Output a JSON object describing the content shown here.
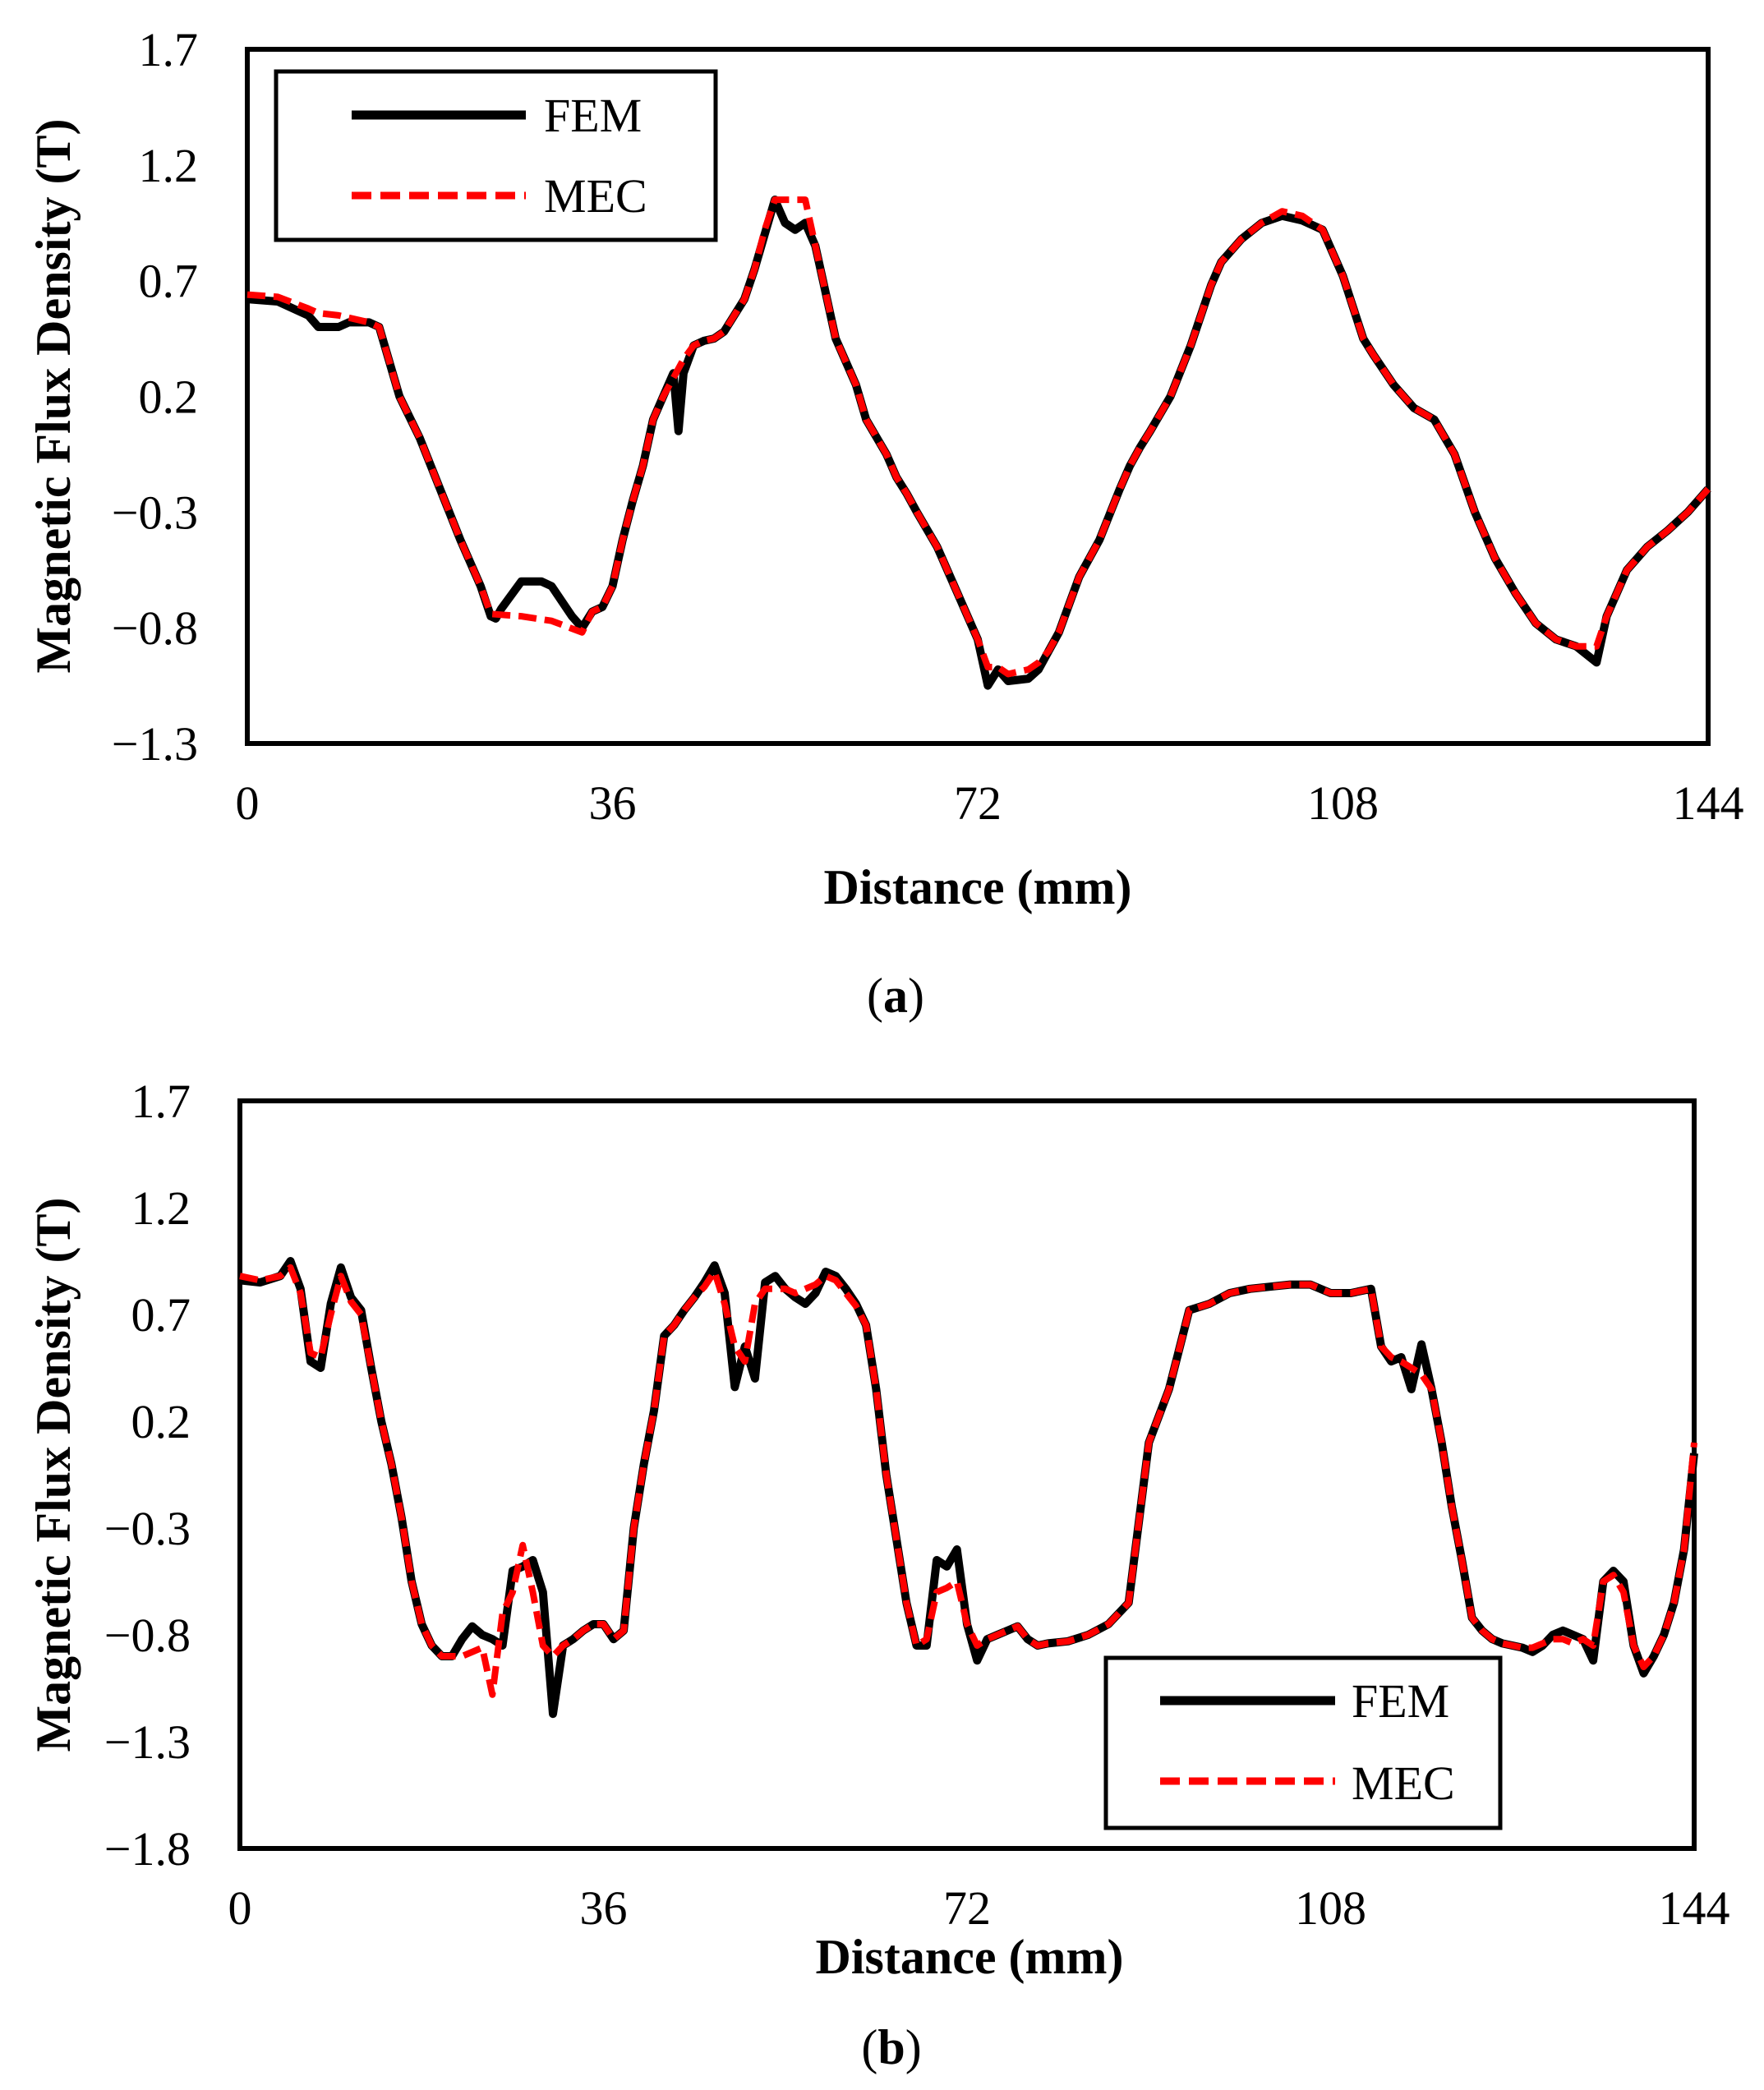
{
  "colors": {
    "fem": "#000000",
    "mec": "#ff0000",
    "frame": "#000000"
  },
  "chart_data": [
    {
      "type": "line",
      "panel_label": "a",
      "xlabel": "Distance (mm)",
      "ylabel": "Magnetic Flux Density (T)",
      "xlim": [
        0,
        144
      ],
      "ylim": [
        -1.3,
        1.7
      ],
      "xticks": [
        0,
        36,
        72,
        108,
        144
      ],
      "xtick_labels": [
        "0",
        "36",
        "72",
        "108",
        "144"
      ],
      "yticks": [
        -1.3,
        -0.8,
        -0.3,
        0.2,
        0.7,
        1.2,
        1.7
      ],
      "ytick_labels": [
        "−1.3",
        "−0.8",
        "−0.3",
        "0.2",
        "0.7",
        "1.2",
        "1.7"
      ],
      "legend": {
        "position": "top-left",
        "entries": [
          "FEM",
          "MEC"
        ]
      },
      "series": [
        {
          "name": "FEM",
          "x": [
            0,
            3,
            6,
            7,
            9,
            10,
            12,
            13,
            14,
            15,
            17,
            19,
            21,
            23,
            24,
            24.5,
            25,
            27,
            29,
            30,
            32,
            33,
            34,
            35,
            36,
            37,
            38,
            39,
            40,
            41,
            42,
            42.5,
            43,
            44,
            45,
            46,
            47,
            49,
            50,
            51,
            52,
            53,
            54,
            55,
            56,
            57,
            58,
            59,
            60,
            61,
            63,
            64,
            65,
            66,
            68,
            70,
            72,
            73,
            74,
            75,
            77,
            78,
            79,
            80,
            81,
            82,
            84,
            86,
            87,
            88,
            89,
            91,
            93,
            95,
            96,
            98,
            100,
            102,
            104,
            106,
            108,
            110,
            111,
            113,
            115,
            117,
            119,
            121,
            123,
            125,
            127,
            129,
            131,
            133,
            134,
            135,
            136,
            137,
            138,
            140,
            142,
            144
          ],
          "y": [
            0.62,
            0.61,
            0.55,
            0.5,
            0.5,
            0.52,
            0.52,
            0.5,
            0.35,
            0.2,
            0.02,
            -0.2,
            -0.42,
            -0.62,
            -0.75,
            -0.76,
            -0.72,
            -0.6,
            -0.6,
            -0.62,
            -0.75,
            -0.8,
            -0.73,
            -0.71,
            -0.62,
            -0.42,
            -0.25,
            -0.1,
            0.1,
            0.2,
            0.3,
            0.05,
            0.3,
            0.42,
            0.44,
            0.45,
            0.48,
            0.62,
            0.75,
            0.9,
            1.05,
            0.95,
            0.92,
            0.95,
            0.85,
            0.65,
            0.45,
            0.35,
            0.25,
            0.1,
            -0.05,
            -0.15,
            -0.22,
            -0.3,
            -0.45,
            -0.65,
            -0.85,
            -1.05,
            -0.98,
            -1.03,
            -1.02,
            -0.98,
            -0.9,
            -0.82,
            -0.7,
            -0.58,
            -0.42,
            -0.2,
            -0.1,
            -0.02,
            0.05,
            0.2,
            0.42,
            0.68,
            0.78,
            0.88,
            0.95,
            0.98,
            0.96,
            0.92,
            0.72,
            0.45,
            0.38,
            0.25,
            0.15,
            0.1,
            -0.05,
            -0.3,
            -0.5,
            -0.65,
            -0.78,
            -0.85,
            -0.88,
            -0.95,
            -0.75,
            -0.65,
            -0.55,
            -0.5,
            -0.45,
            -0.38,
            -0.3,
            -0.2
          ]
        },
        {
          "name": "MEC",
          "x": [
            0,
            3,
            6,
            7,
            9,
            10,
            12,
            13,
            14,
            15,
            17,
            19,
            21,
            23,
            24,
            27,
            30,
            33,
            34,
            35,
            36,
            37,
            38,
            39,
            40,
            41,
            42,
            43,
            44,
            45,
            46,
            47,
            49,
            50,
            51,
            52,
            54,
            55,
            56,
            57,
            58,
            59,
            60,
            61,
            63,
            64,
            65,
            66,
            68,
            70,
            72,
            73,
            74,
            75,
            77,
            78,
            79,
            80,
            81,
            82,
            84,
            86,
            87,
            88,
            89,
            91,
            93,
            95,
            96,
            98,
            100,
            102,
            104,
            106,
            108,
            110,
            111,
            113,
            115,
            117,
            119,
            121,
            123,
            125,
            127,
            129,
            131,
            133,
            134,
            135,
            136,
            137,
            138,
            140,
            142,
            144
          ],
          "y": [
            0.64,
            0.63,
            0.58,
            0.56,
            0.55,
            0.54,
            0.52,
            0.5,
            0.35,
            0.2,
            0.02,
            -0.2,
            -0.42,
            -0.62,
            -0.74,
            -0.75,
            -0.77,
            -0.82,
            -0.73,
            -0.71,
            -0.62,
            -0.42,
            -0.25,
            -0.1,
            0.1,
            0.2,
            0.28,
            0.36,
            0.42,
            0.44,
            0.45,
            0.48,
            0.62,
            0.75,
            0.92,
            1.05,
            1.05,
            1.05,
            0.85,
            0.65,
            0.45,
            0.35,
            0.25,
            0.1,
            -0.05,
            -0.15,
            -0.22,
            -0.3,
            -0.45,
            -0.65,
            -0.85,
            -0.97,
            -0.97,
            -1.0,
            -0.98,
            -0.95,
            -0.9,
            -0.82,
            -0.7,
            -0.58,
            -0.42,
            -0.2,
            -0.1,
            -0.02,
            0.05,
            0.2,
            0.42,
            0.68,
            0.78,
            0.88,
            0.95,
            1.0,
            0.98,
            0.92,
            0.72,
            0.45,
            0.38,
            0.25,
            0.15,
            0.1,
            -0.05,
            -0.3,
            -0.5,
            -0.65,
            -0.78,
            -0.85,
            -0.88,
            -0.88,
            -0.75,
            -0.65,
            -0.55,
            -0.5,
            -0.45,
            -0.38,
            -0.3,
            -0.2
          ]
        }
      ]
    },
    {
      "type": "line",
      "panel_label": "b",
      "xlabel": "Distance (mm)",
      "ylabel": "Magnetic Flux Density (T)",
      "xlim": [
        0,
        144
      ],
      "ylim": [
        -1.8,
        1.7
      ],
      "xticks": [
        0,
        36,
        72,
        108,
        144
      ],
      "xtick_labels": [
        "0",
        "36",
        "72",
        "108",
        "144"
      ],
      "yticks": [
        -1.8,
        -1.3,
        -0.8,
        -0.3,
        0.2,
        0.7,
        1.2,
        1.7
      ],
      "ytick_labels": [
        "−1.8",
        "−1.3",
        "−0.8",
        "−0.3",
        "0.2",
        "0.7",
        "1.2",
        "1.7"
      ],
      "legend": {
        "position": "bottom-right",
        "entries": [
          "FEM",
          "MEC"
        ]
      },
      "series": [
        {
          "name": "FEM",
          "x": [
            0,
            2,
            4,
            5,
            6,
            7,
            8,
            9,
            10,
            11,
            12,
            13,
            14,
            15,
            16,
            17,
            18,
            19,
            20,
            21,
            22,
            23,
            24,
            25,
            26,
            27,
            28,
            29,
            30,
            31,
            32,
            33,
            34,
            35,
            36,
            37,
            38,
            39,
            40,
            41,
            42,
            43,
            44,
            45,
            46,
            47,
            48,
            49,
            50,
            51,
            52,
            53,
            54,
            55,
            56,
            57,
            58,
            59,
            60,
            61,
            62,
            63,
            64,
            65,
            66,
            67,
            68,
            69,
            70,
            71,
            72,
            73,
            74,
            75,
            76,
            77,
            78,
            79,
            80,
            82,
            84,
            86,
            88,
            90,
            92,
            94,
            96,
            98,
            100,
            102,
            104,
            106,
            108,
            110,
            112,
            113,
            114,
            115,
            116,
            117,
            118,
            119,
            120,
            121,
            122,
            123,
            124,
            125,
            126,
            127,
            128,
            129,
            130,
            131,
            132,
            133,
            134,
            135,
            136,
            137,
            138,
            139,
            140,
            141,
            142,
            143,
            144
          ],
          "y": [
            0.86,
            0.85,
            0.88,
            0.95,
            0.82,
            0.48,
            0.45,
            0.75,
            0.92,
            0.78,
            0.72,
            0.45,
            0.2,
            0.0,
            -0.25,
            -0.55,
            -0.75,
            -0.85,
            -0.9,
            -0.9,
            -0.82,
            -0.76,
            -0.8,
            -0.82,
            -0.85,
            -0.5,
            -0.48,
            -0.45,
            -0.6,
            -1.17,
            -0.85,
            -0.82,
            -0.78,
            -0.75,
            -0.75,
            -0.82,
            -0.78,
            -0.3,
            0.0,
            0.25,
            0.6,
            0.65,
            0.72,
            0.78,
            0.85,
            0.93,
            0.8,
            0.36,
            0.55,
            0.4,
            0.85,
            0.88,
            0.82,
            0.78,
            0.75,
            0.8,
            0.9,
            0.88,
            0.82,
            0.75,
            0.65,
            0.35,
            -0.05,
            -0.35,
            -0.65,
            -0.85,
            -0.85,
            -0.45,
            -0.48,
            -0.4,
            -0.75,
            -0.92,
            -0.82,
            -0.8,
            -0.78,
            -0.76,
            -0.82,
            -0.85,
            -0.84,
            -0.83,
            -0.8,
            -0.75,
            -0.65,
            0.1,
            0.35,
            0.72,
            0.75,
            0.8,
            0.82,
            0.83,
            0.84,
            0.84,
            0.8,
            0.8,
            0.82,
            0.55,
            0.48,
            0.5,
            0.35,
            0.56,
            0.35,
            0.1,
            -0.2,
            -0.45,
            -0.72,
            -0.78,
            -0.82,
            -0.84,
            -0.85,
            -0.86,
            -0.88,
            -0.85,
            -0.8,
            -0.78,
            -0.8,
            -0.82,
            -0.92,
            -0.55,
            -0.5,
            -0.55,
            -0.85,
            -0.98,
            -0.9,
            -0.8,
            -0.65,
            -0.4,
            0.05
          ]
        },
        {
          "name": "MEC",
          "x": [
            0,
            2,
            4,
            5,
            6,
            7,
            8,
            9,
            10,
            11,
            12,
            13,
            14,
            15,
            16,
            17,
            18,
            19,
            20,
            21,
            22,
            23,
            24,
            25,
            26,
            27,
            28,
            29,
            30,
            31,
            32,
            33,
            34,
            35,
            36,
            37,
            38,
            39,
            40,
            41,
            42,
            43,
            44,
            45,
            46,
            47,
            48,
            49,
            50,
            51,
            52,
            53,
            54,
            55,
            56,
            57,
            58,
            59,
            60,
            61,
            62,
            63,
            64,
            65,
            66,
            67,
            68,
            69,
            70,
            71,
            72,
            73,
            74,
            75,
            76,
            77,
            78,
            79,
            80,
            82,
            84,
            86,
            88,
            90,
            92,
            94,
            96,
            98,
            100,
            102,
            104,
            106,
            108,
            110,
            112,
            113,
            114,
            115,
            116,
            117,
            118,
            119,
            120,
            121,
            122,
            123,
            124,
            125,
            126,
            127,
            128,
            129,
            130,
            131,
            132,
            133,
            134,
            135,
            136,
            137,
            138,
            139,
            140,
            141,
            142,
            143,
            144
          ],
          "y": [
            0.88,
            0.86,
            0.88,
            0.92,
            0.8,
            0.52,
            0.5,
            0.7,
            0.88,
            0.76,
            0.7,
            0.45,
            0.2,
            0.0,
            -0.25,
            -0.55,
            -0.75,
            -0.85,
            -0.9,
            -0.9,
            -0.9,
            -0.88,
            -0.86,
            -1.08,
            -0.7,
            -0.6,
            -0.38,
            -0.6,
            -0.85,
            -0.9,
            -0.85,
            -0.82,
            -0.78,
            -0.75,
            -0.75,
            -0.82,
            -0.78,
            -0.3,
            0.0,
            0.25,
            0.6,
            0.65,
            0.72,
            0.78,
            0.83,
            0.9,
            0.75,
            0.55,
            0.48,
            0.75,
            0.82,
            0.82,
            0.82,
            0.8,
            0.82,
            0.84,
            0.88,
            0.86,
            0.8,
            0.74,
            0.65,
            0.35,
            -0.05,
            -0.35,
            -0.65,
            -0.85,
            -0.82,
            -0.6,
            -0.58,
            -0.55,
            -0.75,
            -0.85,
            -0.82,
            -0.8,
            -0.78,
            -0.76,
            -0.82,
            -0.85,
            -0.84,
            -0.83,
            -0.8,
            -0.75,
            -0.65,
            0.1,
            0.35,
            0.72,
            0.75,
            0.8,
            0.82,
            0.83,
            0.84,
            0.84,
            0.8,
            0.8,
            0.82,
            0.55,
            0.5,
            0.48,
            0.45,
            0.42,
            0.35,
            0.1,
            -0.2,
            -0.45,
            -0.72,
            -0.78,
            -0.82,
            -0.84,
            -0.85,
            -0.86,
            -0.86,
            -0.84,
            -0.82,
            -0.82,
            -0.84,
            -0.82,
            -0.85,
            -0.55,
            -0.52,
            -0.6,
            -0.85,
            -0.95,
            -0.9,
            -0.8,
            -0.65,
            -0.4,
            0.1
          ]
        }
      ]
    }
  ]
}
